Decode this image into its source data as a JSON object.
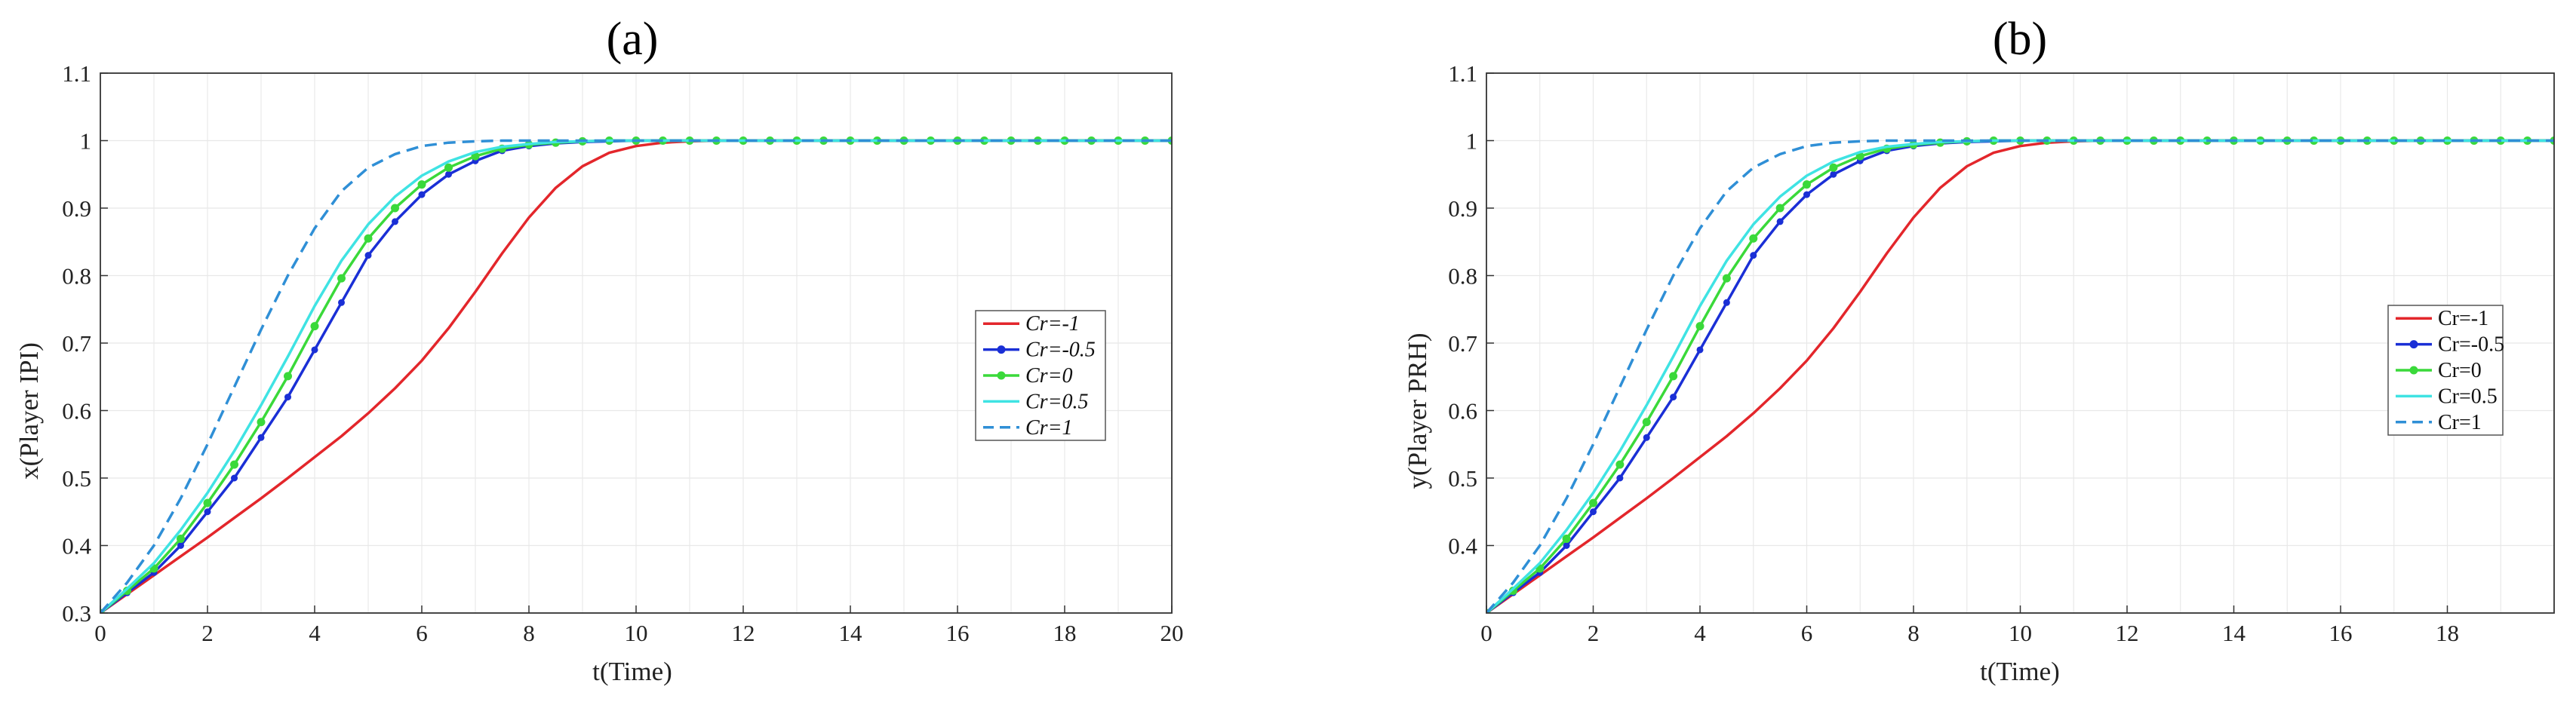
{
  "chart_data": [
    {
      "type": "line",
      "title": "(a)",
      "xlabel": "t(Time)",
      "ylabel": "x(Player IPI)",
      "xlim": [
        0,
        20
      ],
      "ylim": [
        0.3,
        1.1
      ],
      "x_ticks": [
        0,
        2,
        4,
        6,
        8,
        10,
        12,
        14,
        16,
        18,
        20
      ],
      "y_ticks": [
        0.3,
        0.4,
        0.5,
        0.6,
        0.7,
        0.8,
        0.9,
        1,
        1.1
      ],
      "grid": true,
      "legend_position": "right-center",
      "legend_italic": true,
      "x": [
        0,
        0.5,
        1,
        1.5,
        2,
        2.5,
        3,
        3.5,
        4,
        4.5,
        5,
        5.5,
        6,
        6.5,
        7,
        7.5,
        8,
        8.5,
        9,
        9.5,
        10,
        10.5,
        11,
        11.5,
        12,
        12.5,
        13,
        13.5,
        14,
        14.5,
        15,
        15.5,
        16,
        16.5,
        17,
        17.5,
        18,
        18.5,
        19,
        19.5,
        20
      ],
      "series": [
        {
          "name": "Cr=-1",
          "color": "#e3262b",
          "style": "solid",
          "marker": "none",
          "values": [
            0.3,
            0.328,
            0.356,
            0.384,
            0.412,
            0.441,
            0.47,
            0.5,
            0.531,
            0.562,
            0.596,
            0.633,
            0.674,
            0.722,
            0.776,
            0.833,
            0.886,
            0.93,
            0.962,
            0.982,
            0.992,
            0.997,
            0.999,
            1,
            1,
            1,
            1,
            1,
            1,
            1,
            1,
            1,
            1,
            1,
            1,
            1,
            1,
            1,
            1,
            1,
            1
          ]
        },
        {
          "name": "Cr=-0.5",
          "color": "#1a2fd6",
          "style": "solid",
          "marker": "dot",
          "values": [
            0.3,
            0.33,
            0.36,
            0.4,
            0.45,
            0.5,
            0.56,
            0.62,
            0.69,
            0.76,
            0.83,
            0.88,
            0.92,
            0.95,
            0.97,
            0.985,
            0.992,
            0.996,
            0.998,
            0.999,
            1,
            1,
            1,
            1,
            1,
            1,
            1,
            1,
            1,
            1,
            1,
            1,
            1,
            1,
            1,
            1,
            1,
            1,
            1,
            1,
            1
          ]
        },
        {
          "name": "Cr=0",
          "color": "#3ad93a",
          "style": "solid",
          "marker": "dot",
          "values": [
            0.3,
            0.333,
            0.366,
            0.41,
            0.463,
            0.52,
            0.583,
            0.651,
            0.725,
            0.796,
            0.855,
            0.9,
            0.935,
            0.96,
            0.977,
            0.988,
            0.994,
            0.997,
            0.999,
            1,
            1,
            1,
            1,
            1,
            1,
            1,
            1,
            1,
            1,
            1,
            1,
            1,
            1,
            1,
            1,
            1,
            1,
            1,
            1,
            1,
            1
          ]
        },
        {
          "name": "Cr=0.5",
          "color": "#3fe3e3",
          "style": "solid",
          "marker": "none",
          "values": [
            0.3,
            0.336,
            0.374,
            0.423,
            0.478,
            0.54,
            0.608,
            0.68,
            0.755,
            0.822,
            0.876,
            0.917,
            0.948,
            0.969,
            0.983,
            0.991,
            0.995,
            0.998,
            0.999,
            1,
            1,
            1,
            1,
            1,
            1,
            1,
            1,
            1,
            1,
            1,
            1,
            1,
            1,
            1,
            1,
            1,
            1,
            1,
            1,
            1,
            1
          ]
        },
        {
          "name": "Cr=1",
          "color": "#2f8fd6",
          "style": "dashed",
          "marker": "none",
          "values": [
            0.3,
            0.345,
            0.4,
            0.47,
            0.55,
            0.635,
            0.72,
            0.8,
            0.87,
            0.925,
            0.96,
            0.98,
            0.992,
            0.997,
            0.999,
            1,
            1,
            1,
            1,
            1,
            1,
            1,
            1,
            1,
            1,
            1,
            1,
            1,
            1,
            1,
            1,
            1,
            1,
            1,
            1,
            1,
            1,
            1,
            1,
            1,
            1
          ]
        }
      ]
    },
    {
      "type": "line",
      "title": "(b)",
      "xlabel": "t(Time)",
      "ylabel": "y(Player PRH)",
      "xlim": [
        0,
        20
      ],
      "ylim": [
        0.3,
        1.1
      ],
      "x_ticks": [
        0,
        2,
        4,
        6,
        8,
        10,
        12,
        14,
        16,
        18
      ],
      "y_ticks": [
        0.4,
        0.5,
        0.6,
        0.7,
        0.8,
        0.9,
        1,
        1.1
      ],
      "grid": true,
      "legend_position": "right-center",
      "legend_italic": false,
      "x": [
        0,
        0.5,
        1,
        1.5,
        2,
        2.5,
        3,
        3.5,
        4,
        4.5,
        5,
        5.5,
        6,
        6.5,
        7,
        7.5,
        8,
        8.5,
        9,
        9.5,
        10,
        10.5,
        11,
        11.5,
        12,
        12.5,
        13,
        13.5,
        14,
        14.5,
        15,
        15.5,
        16,
        16.5,
        17,
        17.5,
        18,
        18.5,
        19,
        19.5,
        20
      ],
      "series": [
        {
          "name": "Cr=-1",
          "color": "#e3262b",
          "style": "solid",
          "marker": "none",
          "values": [
            0.3,
            0.328,
            0.356,
            0.384,
            0.412,
            0.441,
            0.47,
            0.5,
            0.531,
            0.562,
            0.596,
            0.633,
            0.674,
            0.722,
            0.776,
            0.833,
            0.886,
            0.93,
            0.962,
            0.982,
            0.992,
            0.997,
            0.999,
            1,
            1,
            1,
            1,
            1,
            1,
            1,
            1,
            1,
            1,
            1,
            1,
            1,
            1,
            1,
            1,
            1,
            1
          ]
        },
        {
          "name": "Cr=-0.5",
          "color": "#1a2fd6",
          "style": "solid",
          "marker": "dot",
          "values": [
            0.3,
            0.33,
            0.36,
            0.4,
            0.45,
            0.5,
            0.56,
            0.62,
            0.69,
            0.76,
            0.83,
            0.88,
            0.92,
            0.95,
            0.97,
            0.985,
            0.992,
            0.996,
            0.998,
            0.999,
            1,
            1,
            1,
            1,
            1,
            1,
            1,
            1,
            1,
            1,
            1,
            1,
            1,
            1,
            1,
            1,
            1,
            1,
            1,
            1,
            1
          ]
        },
        {
          "name": "Cr=0",
          "color": "#3ad93a",
          "style": "solid",
          "marker": "dot",
          "values": [
            0.3,
            0.333,
            0.366,
            0.41,
            0.463,
            0.52,
            0.583,
            0.651,
            0.725,
            0.796,
            0.855,
            0.9,
            0.935,
            0.96,
            0.977,
            0.988,
            0.994,
            0.997,
            0.999,
            1,
            1,
            1,
            1,
            1,
            1,
            1,
            1,
            1,
            1,
            1,
            1,
            1,
            1,
            1,
            1,
            1,
            1,
            1,
            1,
            1,
            1
          ]
        },
        {
          "name": "Cr=0.5",
          "color": "#3fe3e3",
          "style": "solid",
          "marker": "none",
          "values": [
            0.3,
            0.336,
            0.374,
            0.423,
            0.478,
            0.54,
            0.608,
            0.68,
            0.755,
            0.822,
            0.876,
            0.917,
            0.948,
            0.969,
            0.983,
            0.991,
            0.995,
            0.998,
            0.999,
            1,
            1,
            1,
            1,
            1,
            1,
            1,
            1,
            1,
            1,
            1,
            1,
            1,
            1,
            1,
            1,
            1,
            1,
            1,
            1,
            1,
            1
          ]
        },
        {
          "name": "Cr=1",
          "color": "#2f8fd6",
          "style": "dashed",
          "marker": "none",
          "values": [
            0.3,
            0.345,
            0.4,
            0.47,
            0.55,
            0.635,
            0.72,
            0.8,
            0.87,
            0.925,
            0.96,
            0.98,
            0.992,
            0.997,
            0.999,
            1,
            1,
            1,
            1,
            1,
            1,
            1,
            1,
            1,
            1,
            1,
            1,
            1,
            1,
            1,
            1,
            1,
            1,
            1,
            1,
            1,
            1,
            1,
            1,
            1,
            1
          ]
        }
      ]
    }
  ]
}
